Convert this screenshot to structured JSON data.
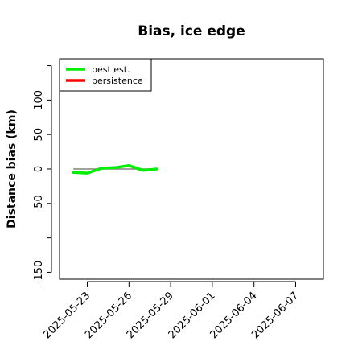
{
  "chart_data": {
    "type": "line",
    "title": "Bias, ice edge",
    "xlabel": "",
    "ylabel": "Distance bias (km)",
    "x_axis_type": "date",
    "xlim": [
      "2025-05-21",
      "2025-06-09"
    ],
    "ylim": [
      -160,
      160
    ],
    "x_ticks": [
      "2025-05-23",
      "2025-05-26",
      "2025-05-29",
      "2025-06-01",
      "2025-06-04",
      "2025-06-07"
    ],
    "y_ticks": [
      -150,
      -100,
      -50,
      0,
      50,
      100,
      150
    ],
    "y_tick_labels_shown": [
      "-150",
      "-50",
      "0",
      "50",
      "100"
    ],
    "reference_line": {
      "y": 0,
      "x_start": "2025-05-22",
      "x_end": "2025-05-28",
      "color": "#808080"
    },
    "legend": {
      "position": "top-left",
      "entries": [
        "best est.",
        "persistence"
      ]
    },
    "series": [
      {
        "name": "best est.",
        "color": "#00ee00",
        "x": [
          "2025-05-22",
          "2025-05-23",
          "2025-05-24",
          "2025-05-25",
          "2025-05-26",
          "2025-05-27",
          "2025-05-28"
        ],
        "values": [
          -5,
          -6,
          1,
          2,
          5,
          -2,
          0
        ]
      },
      {
        "name": "persistence",
        "color": "#ff0000",
        "x": [],
        "values": []
      }
    ]
  }
}
